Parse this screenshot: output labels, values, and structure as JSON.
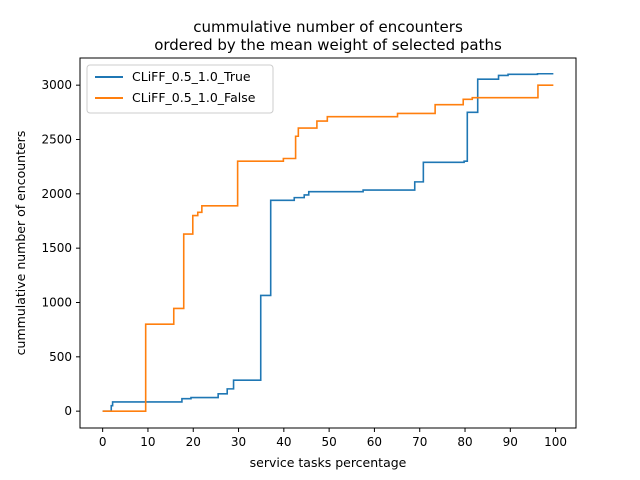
{
  "chart_data": {
    "type": "line",
    "step": true,
    "title": [
      "cummulative number of encounters",
      "ordered by the mean weight of selected paths"
    ],
    "xlabel": "service tasks percentage",
    "ylabel": "cummulative number of encounters",
    "xlim": [
      -5,
      104.5
    ],
    "ylim": [
      -155,
      3250
    ],
    "xticks": [
      0,
      10,
      20,
      30,
      40,
      50,
      60,
      70,
      80,
      90,
      100
    ],
    "yticks": [
      0,
      500,
      1000,
      1500,
      2000,
      2500,
      3000
    ],
    "legend": "top-left",
    "grid": false,
    "series": [
      {
        "name": "CLiFF_0.5_1.0_True",
        "color": "#1f77b4",
        "points": [
          [
            0,
            0
          ],
          [
            1.9,
            0
          ],
          [
            1.9,
            50
          ],
          [
            2.2,
            50
          ],
          [
            2.2,
            85
          ],
          [
            17.5,
            85
          ],
          [
            17.5,
            115
          ],
          [
            19.5,
            115
          ],
          [
            19.5,
            125
          ],
          [
            25.5,
            125
          ],
          [
            25.5,
            160
          ],
          [
            27.5,
            160
          ],
          [
            27.5,
            205
          ],
          [
            28.9,
            205
          ],
          [
            28.9,
            285
          ],
          [
            34.9,
            285
          ],
          [
            34.9,
            1065
          ],
          [
            37.1,
            1065
          ],
          [
            37.1,
            1940
          ],
          [
            42.3,
            1940
          ],
          [
            42.3,
            1965
          ],
          [
            44.5,
            1965
          ],
          [
            44.5,
            1990
          ],
          [
            45.5,
            1990
          ],
          [
            45.5,
            2020
          ],
          [
            57.5,
            2020
          ],
          [
            57.5,
            2035
          ],
          [
            68.9,
            2035
          ],
          [
            68.9,
            2110
          ],
          [
            70.8,
            2110
          ],
          [
            70.8,
            2290
          ],
          [
            79.8,
            2290
          ],
          [
            79.8,
            2300
          ],
          [
            80.5,
            2300
          ],
          [
            80.5,
            2750
          ],
          [
            82.8,
            2750
          ],
          [
            82.8,
            3055
          ],
          [
            87.4,
            3055
          ],
          [
            87.4,
            3090
          ],
          [
            89.5,
            3090
          ],
          [
            89.5,
            3100
          ],
          [
            96.0,
            3100
          ],
          [
            96.0,
            3105
          ],
          [
            99.5,
            3105
          ]
        ]
      },
      {
        "name": "CLiFF_0.5_1.0_False",
        "color": "#ff7f0e",
        "points": [
          [
            0,
            0
          ],
          [
            9.5,
            0
          ],
          [
            9.5,
            800
          ],
          [
            15.7,
            800
          ],
          [
            15.7,
            945
          ],
          [
            17.9,
            945
          ],
          [
            17.9,
            1630
          ],
          [
            19.9,
            1630
          ],
          [
            19.9,
            1800
          ],
          [
            21.0,
            1800
          ],
          [
            21.0,
            1830
          ],
          [
            21.9,
            1830
          ],
          [
            21.9,
            1890
          ],
          [
            29.8,
            1890
          ],
          [
            29.8,
            2300
          ],
          [
            39.9,
            2300
          ],
          [
            39.9,
            2325
          ],
          [
            42.6,
            2325
          ],
          [
            42.6,
            2530
          ],
          [
            43.2,
            2530
          ],
          [
            43.2,
            2605
          ],
          [
            47.3,
            2605
          ],
          [
            47.3,
            2670
          ],
          [
            49.6,
            2670
          ],
          [
            49.6,
            2710
          ],
          [
            65.1,
            2710
          ],
          [
            65.1,
            2740
          ],
          [
            73.4,
            2740
          ],
          [
            73.4,
            2820
          ],
          [
            79.6,
            2820
          ],
          [
            79.6,
            2870
          ],
          [
            81.6,
            2870
          ],
          [
            81.6,
            2885
          ],
          [
            96.1,
            2885
          ],
          [
            96.1,
            3000
          ],
          [
            99.5,
            3000
          ]
        ]
      }
    ]
  }
}
